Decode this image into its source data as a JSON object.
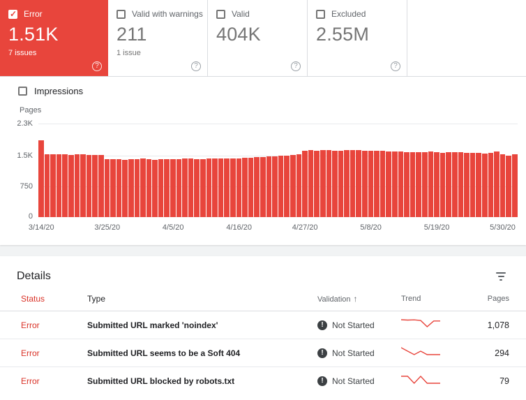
{
  "cards": [
    {
      "label": "Error",
      "value": "1.51K",
      "sub": "7 issues",
      "selected": true,
      "checked": true
    },
    {
      "label": "Valid with warnings",
      "value": "211",
      "sub": "1 issue",
      "selected": false,
      "checked": false
    },
    {
      "label": "Valid",
      "value": "404K",
      "sub": "",
      "selected": false,
      "checked": false
    },
    {
      "label": "Excluded",
      "value": "2.55M",
      "sub": "",
      "selected": false,
      "checked": false
    }
  ],
  "impressions": {
    "label": "Impressions"
  },
  "chart_data": {
    "type": "bar",
    "title": "",
    "xlabel": "",
    "ylabel": "Pages",
    "ymax": 2300,
    "bar_color": "#e8453c",
    "grid": true,
    "yticks": [
      {
        "value": 2300,
        "label": "2.3K"
      },
      {
        "value": 1500,
        "label": "1.5K"
      },
      {
        "value": 750,
        "label": "750"
      },
      {
        "value": 0,
        "label": "0"
      }
    ],
    "x_tick_labels": [
      "3/14/20",
      "3/25/20",
      "4/5/20",
      "4/16/20",
      "4/27/20",
      "5/8/20",
      "5/19/20",
      "5/30/20"
    ],
    "tick_indices": [
      0,
      11,
      22,
      33,
      44,
      55,
      66,
      77
    ],
    "values": [
      1900,
      1560,
      1555,
      1560,
      1550,
      1545,
      1550,
      1555,
      1545,
      1540,
      1535,
      1430,
      1440,
      1435,
      1425,
      1430,
      1440,
      1445,
      1430,
      1425,
      1430,
      1435,
      1440,
      1430,
      1445,
      1450,
      1440,
      1435,
      1445,
      1450,
      1455,
      1450,
      1445,
      1460,
      1470,
      1475,
      1480,
      1490,
      1500,
      1510,
      1520,
      1530,
      1545,
      1560,
      1650,
      1655,
      1650,
      1660,
      1655,
      1650,
      1645,
      1655,
      1660,
      1655,
      1650,
      1645,
      1640,
      1635,
      1630,
      1625,
      1620,
      1615,
      1610,
      1605,
      1615,
      1620,
      1600,
      1595,
      1600,
      1605,
      1600,
      1590,
      1595,
      1585,
      1580,
      1590,
      1620,
      1560,
      1530,
      1550
    ]
  },
  "details": {
    "title": "Details",
    "columns": [
      "Status",
      "Type",
      "Validation",
      "Trend",
      "Pages"
    ],
    "sort_arrow": "↑",
    "rows": [
      {
        "status": "Error",
        "type": "Submitted URL marked 'noindex'",
        "validation": "Not Started",
        "pages": "1,078",
        "trend": [
          1086,
          1084,
          1085,
          1081,
          1042,
          1078,
          1078
        ]
      },
      {
        "status": "Error",
        "type": "Submitted URL seems to be a Soft 404",
        "validation": "Not Started",
        "pages": "294",
        "trend": [
          296,
          295,
          294,
          295,
          294,
          294,
          294
        ]
      },
      {
        "status": "Error",
        "type": "Submitted URL blocked by robots.txt",
        "validation": "Not Started",
        "pages": "79",
        "trend": [
          80,
          80,
          79,
          80,
          79,
          79,
          79
        ]
      }
    ]
  }
}
